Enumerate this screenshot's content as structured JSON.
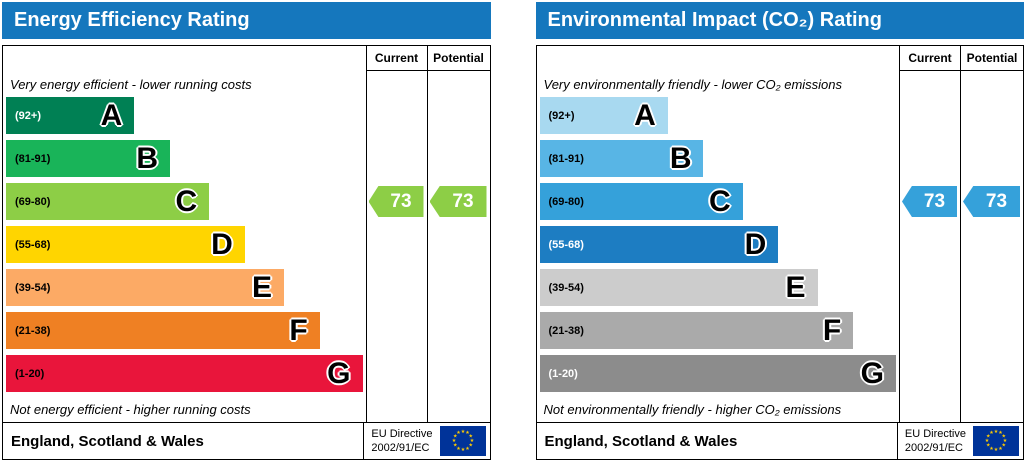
{
  "colors": {
    "header_bg": "#1577bd",
    "eu_flag_bg": "#003399",
    "eu_flag_stars": "#ffcc00"
  },
  "charts": [
    {
      "title": "Energy Efficiency Rating",
      "columns": {
        "current": "Current",
        "potential": "Potential"
      },
      "top_note": "Very energy efficient - lower running costs",
      "bottom_note": "Not energy efficient - higher running costs",
      "bands": [
        {
          "letter": "A",
          "range": "(92+)",
          "color": "#008054",
          "range_text_color": "#ffffff",
          "width_pct": 36
        },
        {
          "letter": "B",
          "range": "(81-91)",
          "color": "#19b459",
          "range_text_color": "#000000",
          "width_pct": 46
        },
        {
          "letter": "C",
          "range": "(69-80)",
          "color": "#8dce46",
          "range_text_color": "#000000",
          "width_pct": 57
        },
        {
          "letter": "D",
          "range": "(55-68)",
          "color": "#ffd500",
          "range_text_color": "#000000",
          "width_pct": 67
        },
        {
          "letter": "E",
          "range": "(39-54)",
          "color": "#fcaa65",
          "range_text_color": "#000000",
          "width_pct": 78
        },
        {
          "letter": "F",
          "range": "(21-38)",
          "color": "#ef8023",
          "range_text_color": "#000000",
          "width_pct": 88
        },
        {
          "letter": "G",
          "range": "(1-20)",
          "color": "#e9153b",
          "range_text_color": "#000000",
          "width_pct": 100
        }
      ],
      "current": {
        "value": "73",
        "color": "#8dce46"
      },
      "potential": {
        "value": "73",
        "color": "#8dce46"
      },
      "footer": {
        "region": "England, Scotland & Wales",
        "directive_line1": "EU Directive",
        "directive_line2": "2002/91/EC"
      }
    },
    {
      "title": "Environmental Impact (CO₂) Rating",
      "columns": {
        "current": "Current",
        "potential": "Potential"
      },
      "top_note": "Very environmentally friendly - lower CO₂ emissions",
      "bottom_note": "Not environmentally friendly - higher CO₂ emissions",
      "bands": [
        {
          "letter": "A",
          "range": "(92+)",
          "color": "#a8d9f0",
          "range_text_color": "#000000",
          "width_pct": 36
        },
        {
          "letter": "B",
          "range": "(81-91)",
          "color": "#58b5e5",
          "range_text_color": "#000000",
          "width_pct": 46
        },
        {
          "letter": "C",
          "range": "(69-80)",
          "color": "#35a1da",
          "range_text_color": "#000000",
          "width_pct": 57
        },
        {
          "letter": "D",
          "range": "(55-68)",
          "color": "#1d7dc2",
          "range_text_color": "#ffffff",
          "width_pct": 67
        },
        {
          "letter": "E",
          "range": "(39-54)",
          "color": "#cccccc",
          "range_text_color": "#000000",
          "width_pct": 78
        },
        {
          "letter": "F",
          "range": "(21-38)",
          "color": "#aaaaaa",
          "range_text_color": "#000000",
          "width_pct": 88
        },
        {
          "letter": "G",
          "range": "(1-20)",
          "color": "#8c8c8c",
          "range_text_color": "#ffffff",
          "width_pct": 100
        }
      ],
      "current": {
        "value": "73",
        "color": "#35a1da"
      },
      "potential": {
        "value": "73",
        "color": "#35a1da"
      },
      "footer": {
        "region": "England, Scotland & Wales",
        "directive_line1": "EU Directive",
        "directive_line2": "2002/91/EC"
      }
    }
  ],
  "chart_data": [
    {
      "type": "bar",
      "title": "Energy Efficiency Rating",
      "categories": [
        "A",
        "B",
        "C",
        "D",
        "E",
        "F",
        "G"
      ],
      "band_ranges": [
        "92+",
        "81-91",
        "69-80",
        "55-68",
        "39-54",
        "21-38",
        "1-20"
      ],
      "series": [
        {
          "name": "Current",
          "value": 73,
          "band": "C"
        },
        {
          "name": "Potential",
          "value": 73,
          "band": "C"
        }
      ],
      "legend_position": "top-right-columns",
      "region": "England, Scotland & Wales"
    },
    {
      "type": "bar",
      "title": "Environmental Impact (CO₂) Rating",
      "categories": [
        "A",
        "B",
        "C",
        "D",
        "E",
        "F",
        "G"
      ],
      "band_ranges": [
        "92+",
        "81-91",
        "69-80",
        "55-68",
        "39-54",
        "21-38",
        "1-20"
      ],
      "series": [
        {
          "name": "Current",
          "value": 73,
          "band": "C"
        },
        {
          "name": "Potential",
          "value": 73,
          "band": "C"
        }
      ],
      "legend_position": "top-right-columns",
      "region": "England, Scotland & Wales"
    }
  ]
}
